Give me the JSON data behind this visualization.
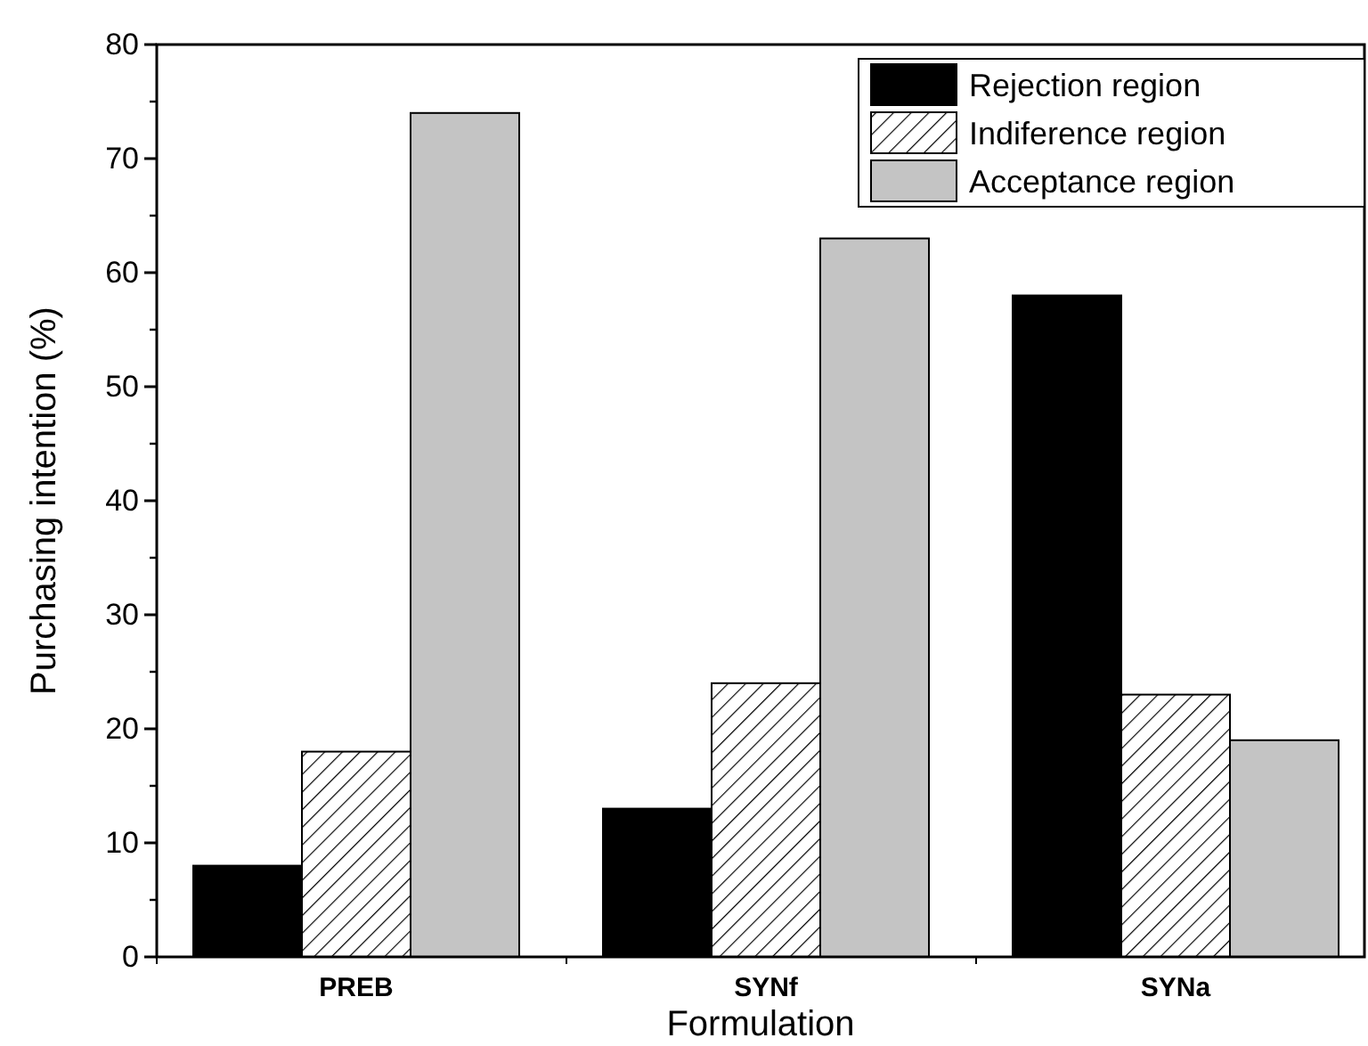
{
  "chart_data": {
    "type": "bar",
    "xlabel": "Formulation",
    "ylabel": "Purchasing intention (%)",
    "categories": [
      "PREB",
      "SYNf",
      "SYNa"
    ],
    "series": [
      {
        "name": "Rejection region",
        "color": "#000000",
        "values": [
          8,
          13,
          58
        ]
      },
      {
        "name": "Indiference region",
        "color": "#000000",
        "values": [
          18,
          24,
          23
        ]
      },
      {
        "name": "Acceptance region",
        "color": "#c4c4c4",
        "values": [
          74,
          63,
          19
        ]
      }
    ],
    "ylim": [
      0,
      80
    ],
    "yticks": [
      0,
      10,
      20,
      30,
      40,
      50,
      60,
      70,
      80
    ],
    "legend": "top right"
  }
}
